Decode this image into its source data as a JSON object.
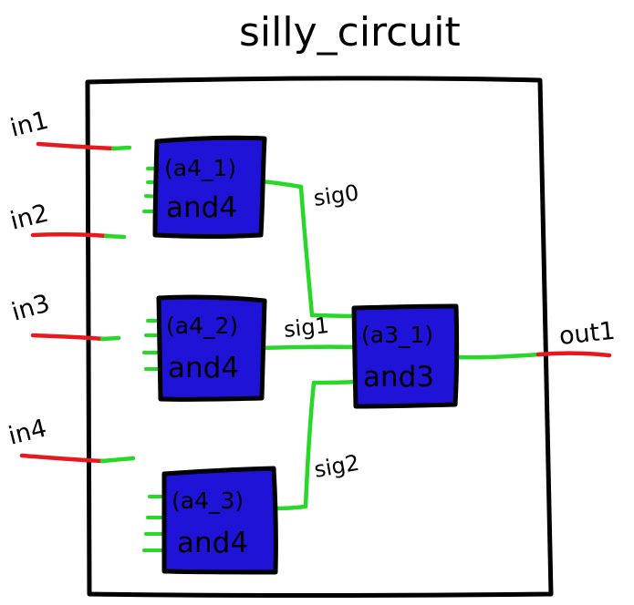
{
  "title": "silly_circuit",
  "inputs": [
    {
      "label": "in1"
    },
    {
      "label": "in2"
    },
    {
      "label": "in3"
    },
    {
      "label": "in4"
    }
  ],
  "output": {
    "label": "out1"
  },
  "gates": [
    {
      "id": "(a4_1)",
      "type": "and4",
      "pins": 4
    },
    {
      "id": "(a4_2)",
      "type": "and4",
      "pins": 4
    },
    {
      "id": "(a4_3)",
      "type": "and4",
      "pins": 4
    },
    {
      "id": "(a3_1)",
      "type": "and3",
      "pins": 3
    }
  ],
  "signals": [
    {
      "label": "sig0"
    },
    {
      "label": "sig1"
    },
    {
      "label": "sig2"
    }
  ],
  "colors": {
    "gate_fill": "#1f13d8",
    "outline": "#000000",
    "internal_wire": "#28d828",
    "external_wire": "#e8191e",
    "background": "#ffffff"
  }
}
